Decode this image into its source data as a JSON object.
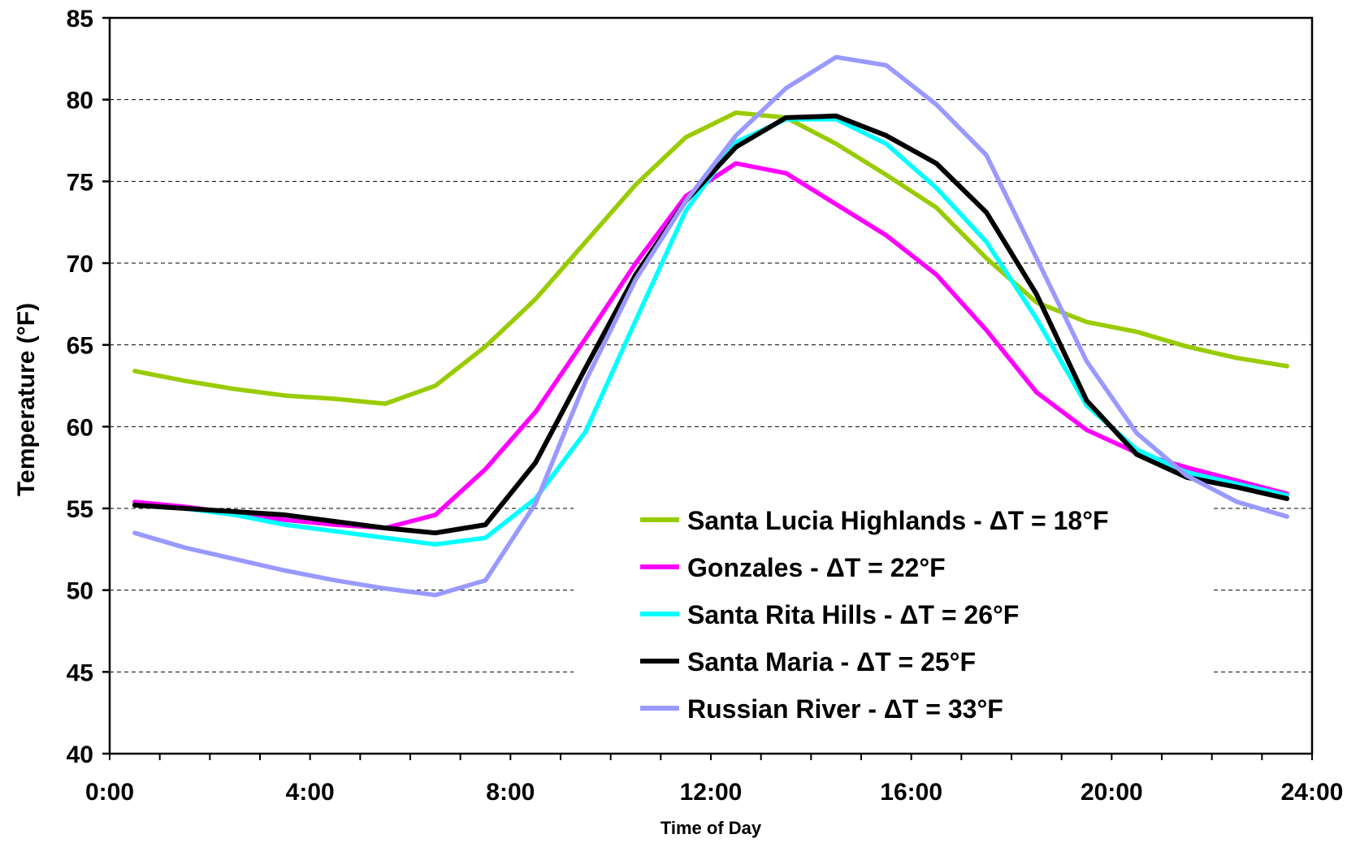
{
  "chart_data": {
    "type": "line",
    "xlabel": "Time of Day",
    "ylabel": "Temperature (°F)",
    "ylim": [
      40,
      85
    ],
    "xlim": [
      0,
      24
    ],
    "yticks": [
      40,
      45,
      50,
      55,
      60,
      65,
      70,
      75,
      80,
      85
    ],
    "xticks": [
      {
        "value": 0,
        "label": "0:00"
      },
      {
        "value": 4,
        "label": "4:00"
      },
      {
        "value": 8,
        "label": "8:00"
      },
      {
        "value": 12,
        "label": "12:00"
      },
      {
        "value": 16,
        "label": "16:00"
      },
      {
        "value": 20,
        "label": "20:00"
      },
      {
        "value": 24,
        "label": "24:00"
      }
    ],
    "grid": "horizontal dashed",
    "legend_position": "bottom-right",
    "x": [
      0.5,
      1.5,
      2.5,
      3.5,
      4.5,
      5.5,
      6.5,
      7.5,
      8.5,
      9.5,
      10.5,
      11.5,
      12.5,
      13.5,
      14.5,
      15.5,
      16.5,
      17.5,
      18.5,
      19.5,
      20.5,
      21.5,
      22.5,
      23.5
    ],
    "series": [
      {
        "name": "Santa Lucia Highlands - ΔT = 18°F",
        "color": "#99cc00",
        "values": [
          63.4,
          62.8,
          62.3,
          61.9,
          61.7,
          61.4,
          62.5,
          64.9,
          67.8,
          71.3,
          74.8,
          77.7,
          79.2,
          78.9,
          77.3,
          75.4,
          73.4,
          70.3,
          67.6,
          66.4,
          65.8,
          64.9,
          64.2,
          63.7
        ]
      },
      {
        "name": "Gonzales - ΔT = 22°F",
        "color": "#ff00ff",
        "values": [
          55.4,
          55.1,
          54.7,
          54.3,
          54.0,
          53.8,
          54.6,
          57.4,
          60.9,
          65.4,
          70.0,
          74.1,
          76.1,
          75.5,
          73.6,
          71.7,
          69.3,
          65.9,
          62.1,
          59.8,
          58.4,
          57.5,
          56.7,
          55.9
        ]
      },
      {
        "name": "Santa Rita Hills - ΔT = 26°F",
        "color": "#00ffff",
        "values": [
          55.2,
          55.0,
          54.6,
          54.0,
          53.6,
          53.2,
          52.8,
          53.2,
          55.6,
          59.7,
          66.5,
          73.2,
          77.4,
          78.8,
          78.8,
          77.3,
          74.6,
          71.3,
          66.6,
          61.3,
          58.6,
          57.2,
          56.5,
          55.8
        ]
      },
      {
        "name": "Santa Maria - ΔT = 25°F",
        "color": "#000000",
        "values": [
          55.2,
          55.0,
          54.8,
          54.6,
          54.2,
          53.8,
          53.5,
          54.0,
          57.8,
          63.6,
          69.3,
          73.8,
          77.1,
          78.9,
          79.0,
          77.8,
          76.1,
          73.1,
          68.1,
          61.6,
          58.3,
          56.9,
          56.3,
          55.6
        ]
      },
      {
        "name": "Russian River - ΔT = 33°F",
        "color": "#9999ff",
        "values": [
          53.5,
          52.6,
          51.9,
          51.2,
          50.6,
          50.1,
          49.7,
          50.6,
          55.3,
          62.8,
          69.0,
          73.8,
          77.8,
          80.7,
          82.6,
          82.1,
          79.7,
          76.6,
          70.3,
          64.0,
          59.6,
          57.0,
          55.4,
          54.5
        ]
      }
    ]
  }
}
